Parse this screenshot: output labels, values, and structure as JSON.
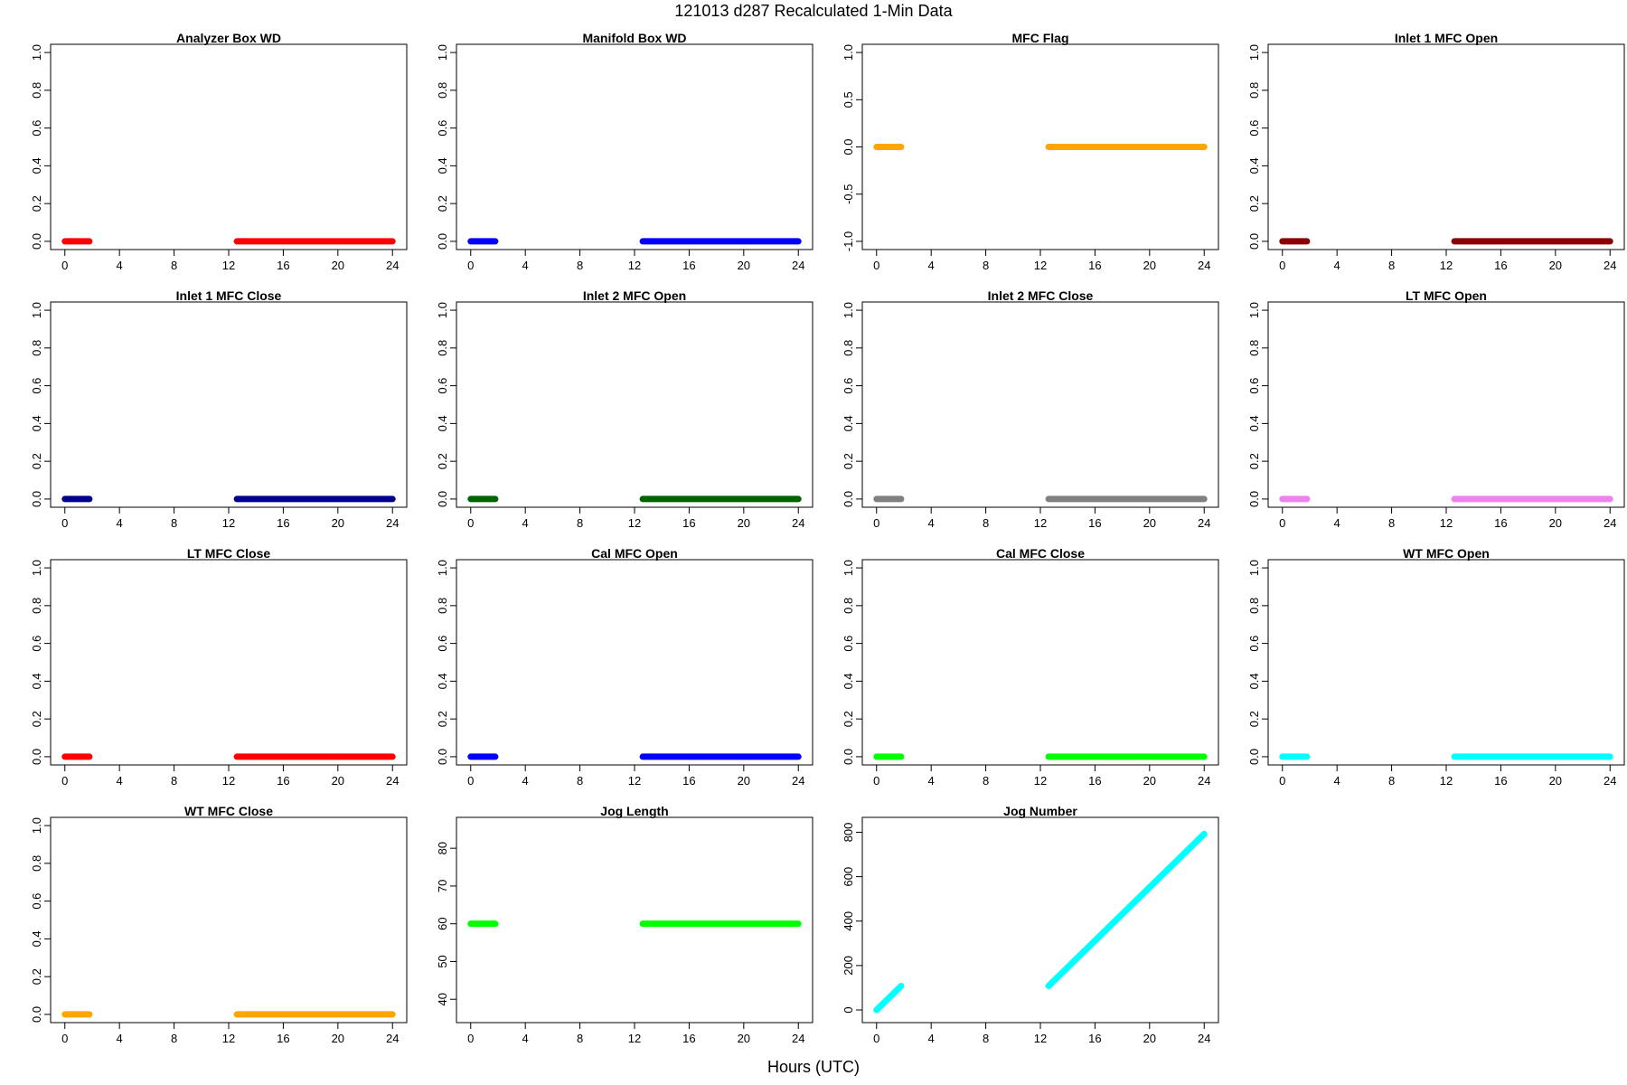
{
  "figure": {
    "title": "121013   d287   Recalculated 1-Min Data",
    "xlabel": "Hours (UTC)"
  },
  "chart_data": [
    {
      "type": "line",
      "title": "Analyzer Box WD",
      "color": "#ff0000",
      "xlim": [
        0,
        24
      ],
      "ylim": [
        0,
        1
      ],
      "xticks": [
        0,
        4,
        8,
        12,
        16,
        20,
        24
      ],
      "yticks": [
        "0.0",
        "0.2",
        "0.4",
        "0.6",
        "0.8",
        "1.0"
      ],
      "segments": [
        {
          "x": [
            0,
            1.8
          ],
          "y": [
            0,
            0
          ]
        },
        {
          "x": [
            12.6,
            24
          ],
          "y": [
            0,
            0
          ]
        }
      ]
    },
    {
      "type": "line",
      "title": "Manifold Box WD",
      "color": "#0000ff",
      "xlim": [
        0,
        24
      ],
      "ylim": [
        0,
        1
      ],
      "xticks": [
        0,
        4,
        8,
        12,
        16,
        20,
        24
      ],
      "yticks": [
        "0.0",
        "0.2",
        "0.4",
        "0.6",
        "0.8",
        "1.0"
      ],
      "segments": [
        {
          "x": [
            0,
            1.8
          ],
          "y": [
            0,
            0
          ]
        },
        {
          "x": [
            12.6,
            24
          ],
          "y": [
            0,
            0
          ]
        }
      ]
    },
    {
      "type": "line",
      "title": "MFC Flag",
      "color": "#ffa500",
      "xlim": [
        0,
        24
      ],
      "ylim": [
        -1,
        1
      ],
      "xticks": [
        0,
        4,
        8,
        12,
        16,
        20,
        24
      ],
      "yticks": [
        "-1.0",
        "-0.5",
        "0.0",
        "0.5",
        "1.0"
      ],
      "segments": [
        {
          "x": [
            0,
            1.8
          ],
          "y": [
            0,
            0
          ]
        },
        {
          "x": [
            12.6,
            24
          ],
          "y": [
            0,
            0
          ]
        }
      ]
    },
    {
      "type": "line",
      "title": "Inlet 1 MFC Open",
      "color": "#8b0000",
      "xlim": [
        0,
        24
      ],
      "ylim": [
        0,
        1
      ],
      "xticks": [
        0,
        4,
        8,
        12,
        16,
        20,
        24
      ],
      "yticks": [
        "0.0",
        "0.2",
        "0.4",
        "0.6",
        "0.8",
        "1.0"
      ],
      "segments": [
        {
          "x": [
            0,
            1.8
          ],
          "y": [
            0,
            0
          ]
        },
        {
          "x": [
            12.6,
            24
          ],
          "y": [
            0,
            0
          ]
        }
      ]
    },
    {
      "type": "line",
      "title": "Inlet 1 MFC Close",
      "color": "#00008b",
      "xlim": [
        0,
        24
      ],
      "ylim": [
        0,
        1
      ],
      "xticks": [
        0,
        4,
        8,
        12,
        16,
        20,
        24
      ],
      "yticks": [
        "0.0",
        "0.2",
        "0.4",
        "0.6",
        "0.8",
        "1.0"
      ],
      "segments": [
        {
          "x": [
            0,
            1.8
          ],
          "y": [
            0,
            0
          ]
        },
        {
          "x": [
            12.6,
            24
          ],
          "y": [
            0,
            0
          ]
        }
      ]
    },
    {
      "type": "line",
      "title": "Inlet 2 MFC Open",
      "color": "#006400",
      "xlim": [
        0,
        24
      ],
      "ylim": [
        0,
        1
      ],
      "xticks": [
        0,
        4,
        8,
        12,
        16,
        20,
        24
      ],
      "yticks": [
        "0.0",
        "0.2",
        "0.4",
        "0.6",
        "0.8",
        "1.0"
      ],
      "segments": [
        {
          "x": [
            0,
            1.8
          ],
          "y": [
            0,
            0
          ]
        },
        {
          "x": [
            12.6,
            24
          ],
          "y": [
            0,
            0
          ]
        }
      ]
    },
    {
      "type": "line",
      "title": "Inlet 2 MFC Close",
      "color": "#808080",
      "xlim": [
        0,
        24
      ],
      "ylim": [
        0,
        1
      ],
      "xticks": [
        0,
        4,
        8,
        12,
        16,
        20,
        24
      ],
      "yticks": [
        "0.0",
        "0.2",
        "0.4",
        "0.6",
        "0.8",
        "1.0"
      ],
      "segments": [
        {
          "x": [
            0,
            1.8
          ],
          "y": [
            0,
            0
          ]
        },
        {
          "x": [
            12.6,
            24
          ],
          "y": [
            0,
            0
          ]
        }
      ]
    },
    {
      "type": "line",
      "title": "LT MFC Open",
      "color": "#ee82ee",
      "xlim": [
        0,
        24
      ],
      "ylim": [
        0,
        1
      ],
      "xticks": [
        0,
        4,
        8,
        12,
        16,
        20,
        24
      ],
      "yticks": [
        "0.0",
        "0.2",
        "0.4",
        "0.6",
        "0.8",
        "1.0"
      ],
      "segments": [
        {
          "x": [
            0,
            1.8
          ],
          "y": [
            0,
            0
          ]
        },
        {
          "x": [
            12.6,
            24
          ],
          "y": [
            0,
            0
          ]
        }
      ]
    },
    {
      "type": "line",
      "title": "LT MFC Close",
      "color": "#ff0000",
      "xlim": [
        0,
        24
      ],
      "ylim": [
        0,
        1
      ],
      "xticks": [
        0,
        4,
        8,
        12,
        16,
        20,
        24
      ],
      "yticks": [
        "0.0",
        "0.2",
        "0.4",
        "0.6",
        "0.8",
        "1.0"
      ],
      "segments": [
        {
          "x": [
            0,
            1.8
          ],
          "y": [
            0,
            0
          ]
        },
        {
          "x": [
            12.6,
            24
          ],
          "y": [
            0,
            0
          ]
        }
      ]
    },
    {
      "type": "line",
      "title": "Cal MFC Open",
      "color": "#0000ff",
      "xlim": [
        0,
        24
      ],
      "ylim": [
        0,
        1
      ],
      "xticks": [
        0,
        4,
        8,
        12,
        16,
        20,
        24
      ],
      "yticks": [
        "0.0",
        "0.2",
        "0.4",
        "0.6",
        "0.8",
        "1.0"
      ],
      "segments": [
        {
          "x": [
            0,
            1.8
          ],
          "y": [
            0,
            0
          ]
        },
        {
          "x": [
            12.6,
            24
          ],
          "y": [
            0,
            0
          ]
        }
      ]
    },
    {
      "type": "line",
      "title": "Cal MFC Close",
      "color": "#00ff00",
      "xlim": [
        0,
        24
      ],
      "ylim": [
        0,
        1
      ],
      "xticks": [
        0,
        4,
        8,
        12,
        16,
        20,
        24
      ],
      "yticks": [
        "0.0",
        "0.2",
        "0.4",
        "0.6",
        "0.8",
        "1.0"
      ],
      "segments": [
        {
          "x": [
            0,
            1.8
          ],
          "y": [
            0,
            0
          ]
        },
        {
          "x": [
            12.6,
            24
          ],
          "y": [
            0,
            0
          ]
        }
      ]
    },
    {
      "type": "line",
      "title": "WT MFC Open",
      "color": "#00ffff",
      "xlim": [
        0,
        24
      ],
      "ylim": [
        0,
        1
      ],
      "xticks": [
        0,
        4,
        8,
        12,
        16,
        20,
        24
      ],
      "yticks": [
        "0.0",
        "0.2",
        "0.4",
        "0.6",
        "0.8",
        "1.0"
      ],
      "segments": [
        {
          "x": [
            0,
            1.8
          ],
          "y": [
            0,
            0
          ]
        },
        {
          "x": [
            12.6,
            24
          ],
          "y": [
            0,
            0
          ]
        }
      ]
    },
    {
      "type": "line",
      "title": "WT MFC Close",
      "color": "#ffa500",
      "xlim": [
        0,
        24
      ],
      "ylim": [
        0,
        1
      ],
      "xticks": [
        0,
        4,
        8,
        12,
        16,
        20,
        24
      ],
      "yticks": [
        "0.0",
        "0.2",
        "0.4",
        "0.6",
        "0.8",
        "1.0"
      ],
      "segments": [
        {
          "x": [
            0,
            1.8
          ],
          "y": [
            0,
            0
          ]
        },
        {
          "x": [
            12.6,
            24
          ],
          "y": [
            0,
            0
          ]
        }
      ]
    },
    {
      "type": "line",
      "title": "Jog Length",
      "color": "#00ff00",
      "xlim": [
        0,
        24
      ],
      "ylim": [
        36,
        86
      ],
      "xticks": [
        0,
        4,
        8,
        12,
        16,
        20,
        24
      ],
      "yticks": [
        "40",
        "50",
        "60",
        "70",
        "80"
      ],
      "segments": [
        {
          "x": [
            0,
            1.8
          ],
          "y": [
            60,
            60
          ]
        },
        {
          "x": [
            12.6,
            24
          ],
          "y": [
            60,
            60
          ]
        }
      ]
    },
    {
      "type": "line",
      "title": "Jog Number",
      "color": "#00ffff",
      "xlim": [
        0,
        24
      ],
      "ylim": [
        -20,
        830
      ],
      "xticks": [
        0,
        4,
        8,
        12,
        16,
        20,
        24
      ],
      "yticks": [
        "0",
        "200",
        "400",
        "600",
        "800"
      ],
      "segments": [
        {
          "x": [
            0,
            1.8
          ],
          "y": [
            0,
            108
          ]
        },
        {
          "x": [
            12.6,
            24
          ],
          "y": [
            108,
            792
          ]
        }
      ]
    }
  ]
}
